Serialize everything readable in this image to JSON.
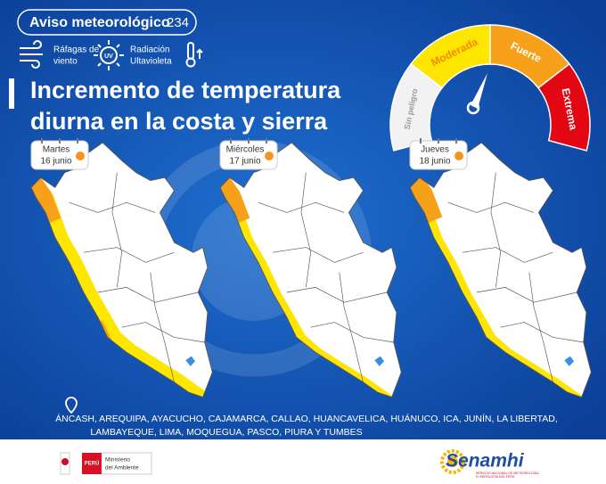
{
  "header": {
    "title": "Aviso meteorológico",
    "number": "234"
  },
  "icons": [
    {
      "lines": [
        "Ráfagas de",
        "viento"
      ]
    },
    {
      "badge": "UV",
      "lines": [
        "Radiación",
        "Ultavioleta"
      ]
    }
  ],
  "gauge": {
    "levels": [
      "Sin peligro",
      "Moderada",
      "Fuerte",
      "Extrema"
    ]
  },
  "title": [
    "Incremento de temperatura",
    "diurna en la costa y sierra"
  ],
  "days": [
    {
      "day": "Martes",
      "date": "16 junio"
    },
    {
      "day": "Miércoles",
      "date": "17 junio"
    },
    {
      "day": "Jueves",
      "date": "18 junio"
    }
  ],
  "regions": [
    "ÁNCASH, AREQUIPA, AYACUCHO, CAJAMARCA, CALLAO, HUANCAVELICA, HUÁNUCO, ICA, JUNÍN, LA LIBERTAD,",
    "LAMBAYEQUE, LIMA, MOQUEGUA, PASCO, PIURA Y TUMBES"
  ],
  "footer": {
    "country": "PERÚ",
    "ministry": [
      "Ministerio",
      "del Ambiente"
    ],
    "brand": "Senamhi",
    "brand_sub": [
      "SERVICIO NACIONAL DE METEOROLOGÍA",
      "E HIDROLOGÍA DEL PERÚ"
    ]
  }
}
